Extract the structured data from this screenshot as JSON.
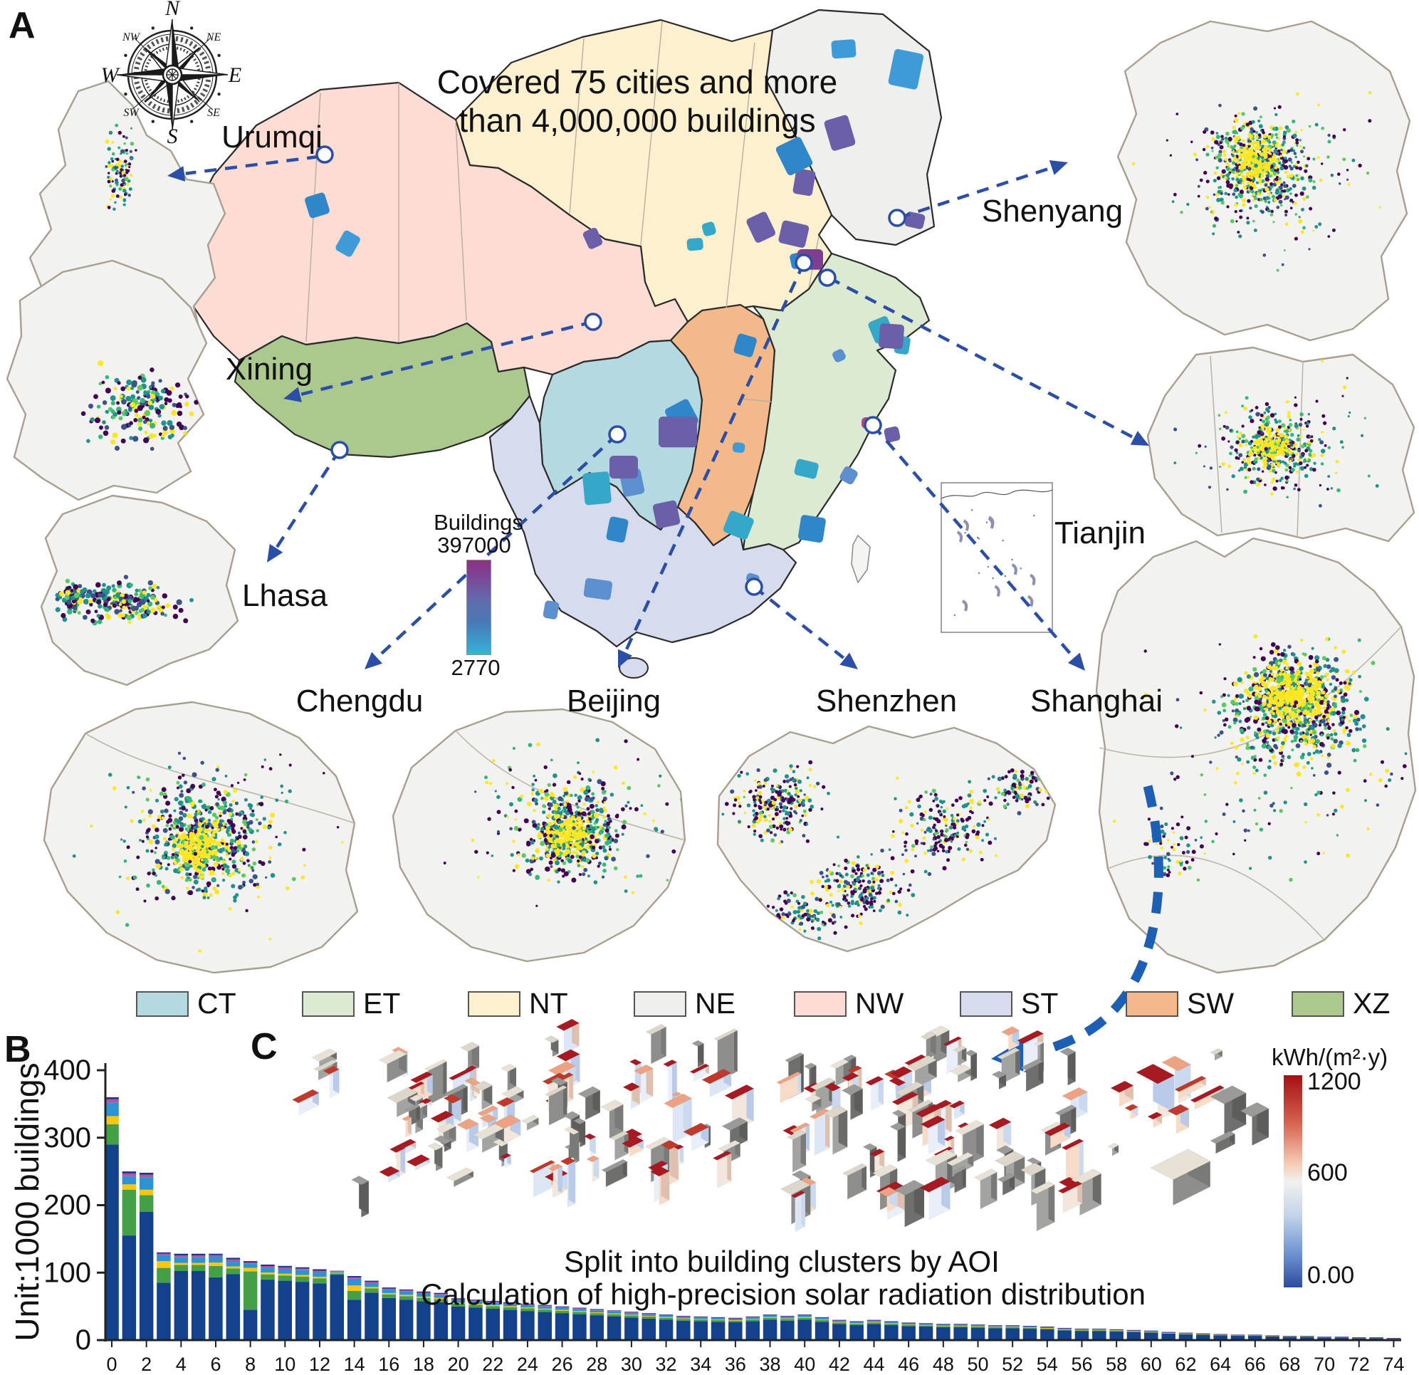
{
  "panels": {
    "a": "A",
    "b": "B",
    "c": "C"
  },
  "title": {
    "line1": "Covered 75 cities and more",
    "line2": "than 4,000,000 buildings"
  },
  "compass": {
    "cardinals": [
      "N",
      "E",
      "S",
      "W"
    ],
    "intercardinals": [
      "NE",
      "SE",
      "SW",
      "NW"
    ]
  },
  "city_labels": {
    "urumqi": "Urumqi",
    "xining": "Xining",
    "lhasa": "Lhasa",
    "chengdu": "Chengdu",
    "beijing": "Beijing",
    "shenzhen": "Shenzhen",
    "shanghai": "Shanghai",
    "shenyang": "Shenyang",
    "tianjin": "Tianjin"
  },
  "buildings_colorbar": {
    "title": "Buildings",
    "max_label": "397000",
    "min_label": "2770",
    "top_color": "#8e2f87",
    "mid_color": "#5f6fae",
    "bottom_color": "#35b3d8"
  },
  "region_legend": [
    {
      "code": "CT",
      "color": "#b5d9e0"
    },
    {
      "code": "ET",
      "color": "#dcead2"
    },
    {
      "code": "NT",
      "color": "#fcf0cf"
    },
    {
      "code": "NE",
      "color": "#efefed"
    },
    {
      "code": "NW",
      "color": "#fcdcd3"
    },
    {
      "code": "ST",
      "color": "#d7dbee"
    },
    {
      "code": "SW",
      "color": "#f4b98a"
    },
    {
      "code": "XZ",
      "color": "#abc98d"
    }
  ],
  "panel_c": {
    "caption_line1": "Split into building clusters  by AOI",
    "caption_line2": "Calculation of high-precision solar radiation distribution"
  },
  "radiation_colorbar": {
    "title": "kWh/(m²·y)",
    "max_label": "1200",
    "mid_label": "600",
    "min_label": "0.00",
    "top_color": "#a50f15",
    "mid_color": "#f2f1ef",
    "bottom_color": "#2c4b9e"
  },
  "chart_data": {
    "type": "bar",
    "stacked": true,
    "title": "",
    "xlabel": "",
    "ylabel": "Unit:1000 buildings",
    "ylim": [
      0,
      400
    ],
    "yticks": [
      0,
      100,
      200,
      300,
      400
    ],
    "x_start": 0,
    "x_end": 74,
    "xtick_step": 2,
    "grid": false,
    "legend_position": "none",
    "stack_colors": [
      "#14418c",
      "#43a047",
      "#fdc413",
      "#2e93d3",
      "#b2559c",
      "#232f8c"
    ],
    "totals": [
      360,
      250,
      248,
      130,
      128,
      128,
      128,
      122,
      117,
      112,
      110,
      108,
      105,
      103,
      95,
      88,
      78,
      75,
      72,
      70,
      62,
      60,
      58,
      56,
      54,
      52,
      50,
      48,
      46,
      44,
      42,
      40,
      38,
      36,
      35,
      34,
      33,
      35,
      38,
      36,
      38,
      34,
      30,
      28,
      30,
      28,
      26,
      25,
      24,
      24,
      23,
      22,
      22,
      21,
      20,
      18,
      17,
      17,
      16,
      15,
      14,
      12,
      11,
      10,
      9,
      8,
      8,
      7,
      6,
      6,
      5,
      5,
      4,
      4,
      3
    ],
    "default_fractions": [
      0.8,
      0.07,
      0.025,
      0.065,
      0.02,
      0.02
    ],
    "overrides": {
      "0": [
        290,
        30,
        12,
        20,
        5,
        3
      ],
      "1": [
        155,
        68,
        8,
        12,
        4,
        3
      ],
      "2": [
        190,
        25,
        8,
        18,
        4,
        3
      ],
      "3": [
        85,
        22,
        10,
        9,
        2,
        2
      ],
      "6": [
        93,
        17,
        5,
        9,
        2,
        2
      ],
      "8": [
        45,
        57,
        5,
        6,
        2,
        2
      ],
      "13": [
        97,
        2,
        1,
        2,
        1,
        0
      ],
      "14": [
        60,
        13,
        8,
        10,
        2,
        2
      ]
    }
  }
}
